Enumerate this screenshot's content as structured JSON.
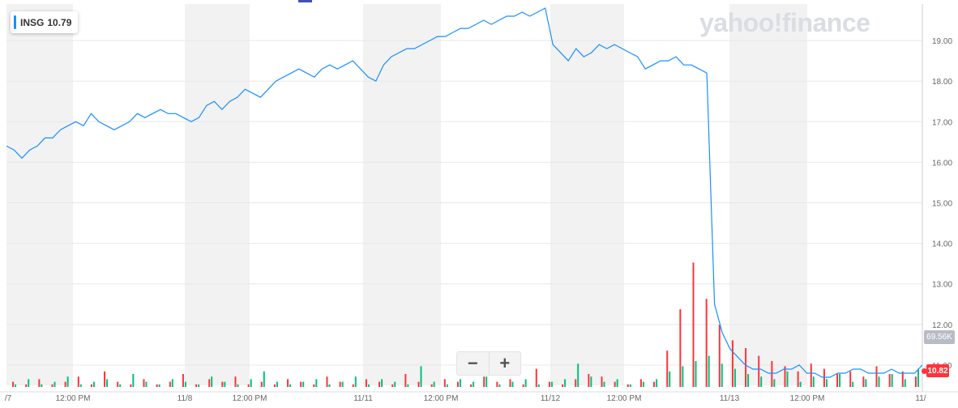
{
  "ticker": {
    "symbol": "INSG",
    "price": "10.79"
  },
  "logo_text": "yahoo!finance",
  "zoom": {
    "minus": "−",
    "plus": "+"
  },
  "volume_label": "69.56K",
  "last_price_label": "10.82",
  "colors": {
    "line": "#188fff",
    "shade": "#f2f2f2",
    "grid": "#e8e8e8",
    "vol_up": "#00c07b",
    "vol_down": "#ff333a",
    "last_price": "#ff333a"
  },
  "chart_data": {
    "type": "line",
    "title": "",
    "xlabel": "",
    "ylabel": "",
    "ylim": [
      10.5,
      19.9
    ],
    "y_ticks": [
      "11.00",
      "12.00",
      "13.00",
      "14.00",
      "15.00",
      "16.00",
      "17.00",
      "18.00",
      "19.00"
    ],
    "x_ticks": [
      "/7",
      "12:00 PM",
      "11/8",
      "12:00 PM",
      "11/11",
      "12:00 PM",
      "11/12",
      "12:00 PM",
      "11/13",
      "12:00 PM",
      "11/"
    ],
    "series": [
      {
        "values": [
          16.4,
          16.3,
          16.1,
          16.3,
          16.4,
          16.6,
          16.6,
          16.8,
          16.9,
          17.0,
          16.9,
          17.2,
          17.0,
          16.9,
          16.8,
          16.9,
          17.0,
          17.2,
          17.1,
          17.2,
          17.3,
          17.2,
          17.2,
          17.1,
          17.0,
          17.1,
          17.4,
          17.5,
          17.3,
          17.5,
          17.6,
          17.8,
          17.7,
          17.6,
          17.8,
          18.0,
          18.1,
          18.2,
          18.3,
          18.2,
          18.1,
          18.3,
          18.4,
          18.3,
          18.4,
          18.5,
          18.3,
          18.1,
          18.0,
          18.4,
          18.6,
          18.7,
          18.8,
          18.8,
          18.9,
          19.0,
          19.1,
          19.1,
          19.2,
          19.3,
          19.3,
          19.4,
          19.5,
          19.4,
          19.5,
          19.6,
          19.6,
          19.7,
          19.6,
          19.7,
          19.8,
          18.9,
          18.7,
          18.5,
          18.8,
          18.6,
          18.7,
          18.9,
          18.8,
          18.9,
          18.8,
          18.7,
          18.6,
          18.3,
          18.4,
          18.5,
          18.5,
          18.6,
          18.4,
          18.4,
          18.3,
          18.2,
          12.5,
          11.8,
          11.4,
          11.2,
          11.0,
          10.9,
          10.9,
          10.8,
          10.8,
          10.9,
          10.9,
          11.0,
          10.8,
          10.8,
          10.7,
          10.7,
          10.8,
          10.8,
          10.9,
          10.9,
          10.8,
          10.8,
          10.8,
          10.9,
          10.8,
          10.8,
          10.8,
          11.0
        ]
      }
    ],
    "volume": {
      "up": [
        1,
        3,
        1,
        2,
        4,
        1,
        2,
        3,
        1,
        5,
        2,
        1,
        3,
        2,
        1,
        4,
        2,
        1,
        3,
        6,
        2,
        1,
        2,
        3,
        1,
        2,
        4,
        1,
        3,
        2,
        1,
        8,
        2,
        1,
        3,
        2,
        4,
        1,
        2,
        3,
        1,
        2,
        3,
        9,
        4,
        2,
        3,
        1,
        2,
        3,
        6,
        8,
        10,
        12,
        9,
        7,
        5,
        4,
        3,
        6,
        2,
        4,
        3,
        5,
        2,
        3,
        4,
        5,
        3,
        7
      ],
      "down": [
        2,
        1,
        3,
        1,
        2,
        4,
        1,
        6,
        2,
        1,
        3,
        1,
        2,
        5,
        1,
        3,
        2,
        4,
        1,
        2,
        1,
        3,
        2,
        1,
        4,
        2,
        1,
        3,
        2,
        1,
        5,
        2,
        1,
        3,
        2,
        1,
        4,
        2,
        3,
        1,
        7,
        2,
        1,
        3,
        5,
        4,
        2,
        1,
        3,
        2,
        14,
        30,
        48,
        34,
        24,
        18,
        15,
        12,
        10,
        8,
        6,
        9,
        7,
        5,
        6,
        4,
        8,
        5,
        6,
        4
      ]
    }
  }
}
